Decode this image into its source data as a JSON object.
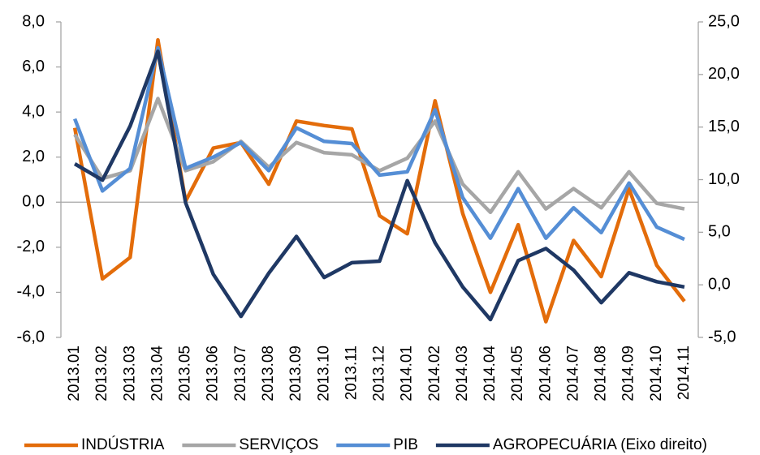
{
  "chart_data": {
    "type": "line",
    "categories": [
      "2013.01",
      "2013.02",
      "2013.03",
      "2013.04",
      "2013.05",
      "2013.06",
      "2013.07",
      "2013.08",
      "2013.09",
      "2013.10",
      "2013.11",
      "2013.12",
      "2014.01",
      "2014.02",
      "2014.03",
      "2014.04",
      "2014.05",
      "2014.06",
      "2014.07",
      "2014.08",
      "2014.09",
      "2014.10",
      "2014.11"
    ],
    "series": [
      {
        "name": "INDÚSTRIA",
        "color": "#e36c0a",
        "values": [
          3.3,
          -3.4,
          -2.45,
          7.2,
          0.05,
          2.4,
          2.65,
          0.8,
          3.6,
          3.4,
          3.25,
          -0.6,
          -1.4,
          4.5,
          -0.5,
          -4.0,
          -1.0,
          -5.3,
          -1.7,
          -3.3,
          0.6,
          -2.8,
          -4.4
        ]
      },
      {
        "name": "SERVIÇOS",
        "color": "#a6a6a6",
        "values": [
          3.0,
          1.05,
          1.4,
          4.6,
          1.4,
          1.8,
          2.7,
          1.55,
          2.65,
          2.2,
          2.1,
          1.4,
          1.95,
          3.6,
          0.8,
          -0.45,
          1.35,
          -0.3,
          0.6,
          -0.25,
          1.35,
          -0.05,
          -0.3
        ]
      },
      {
        "name": "PIB",
        "color": "#558ed5",
        "values": [
          3.7,
          0.5,
          1.5,
          6.85,
          1.5,
          2.0,
          2.65,
          1.4,
          3.3,
          2.7,
          2.6,
          1.2,
          1.35,
          4.1,
          0.2,
          -1.6,
          0.6,
          -1.6,
          -0.25,
          -1.35,
          0.85,
          -1.1,
          -1.65
        ]
      },
      {
        "name": "AGROPECUÁRIA (Eixo direito)",
        "color": "#1f3864",
        "axis": "y2",
        "values": [
          11.5,
          9.95,
          15.1,
          22.2,
          7.8,
          1.0,
          -3.0,
          1.1,
          4.6,
          0.7,
          2.1,
          2.25,
          9.9,
          4.0,
          -0.2,
          -3.3,
          2.3,
          3.45,
          1.4,
          -1.7,
          1.15,
          0.3,
          -0.2
        ]
      }
    ],
    "ylim": [
      -6,
      8
    ],
    "yticks": [
      {
        "value": -6,
        "label": "-6,0"
      },
      {
        "value": -4,
        "label": "-4,0"
      },
      {
        "value": -2,
        "label": "-2,0"
      },
      {
        "value": 0,
        "label": "0,0"
      },
      {
        "value": 2,
        "label": "2,0"
      },
      {
        "value": 4,
        "label": "4,0"
      },
      {
        "value": 6,
        "label": "6,0"
      },
      {
        "value": 8,
        "label": "8,0"
      }
    ],
    "y2lim": [
      -5,
      25
    ],
    "y2ticks": [
      {
        "value": -5,
        "label": "-5,0"
      },
      {
        "value": 0,
        "label": "0,0"
      },
      {
        "value": 5,
        "label": "5,0"
      },
      {
        "value": 10,
        "label": "10,0"
      },
      {
        "value": 15,
        "label": "15,0"
      },
      {
        "value": 20,
        "label": "20,0"
      },
      {
        "value": 25,
        "label": "25,0"
      }
    ],
    "legend": "bottom",
    "grid": false
  }
}
